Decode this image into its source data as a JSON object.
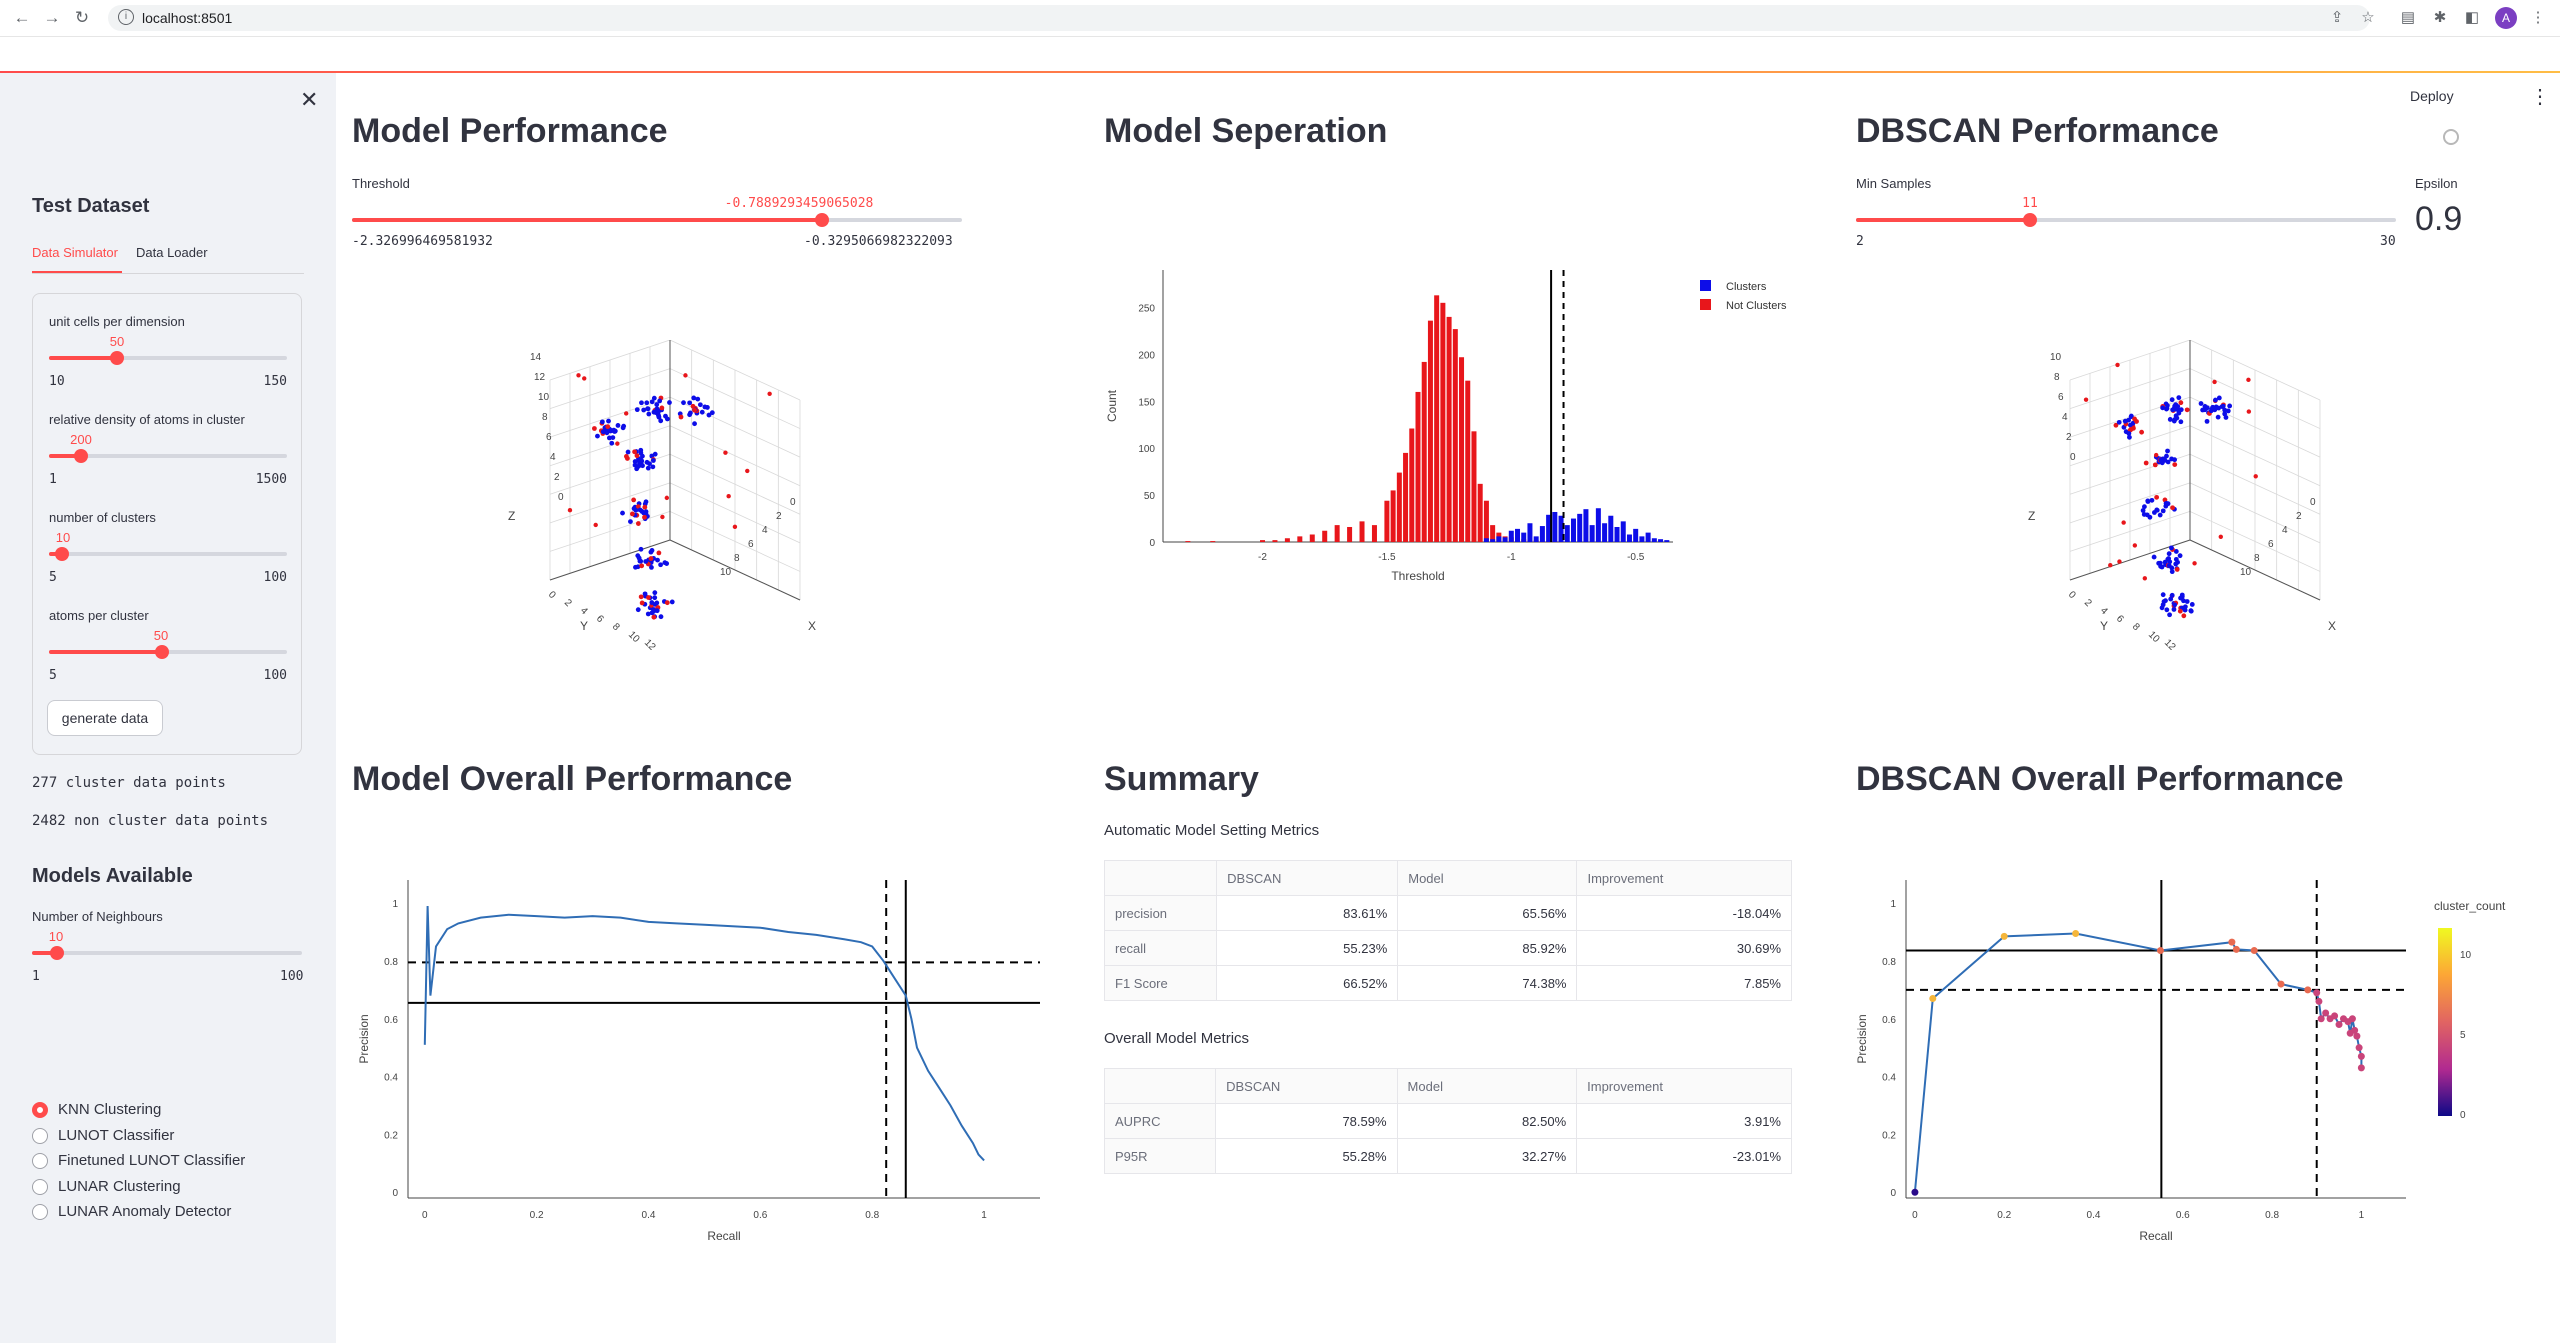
{
  "browser": {
    "url": "localhost:8501",
    "profile_initial": "A"
  },
  "header": {
    "deploy": "Deploy",
    "menu_icon": "kebab-icon"
  },
  "sidebar": {
    "title": "Test Dataset",
    "tabs": [
      "Data Simulator",
      "Data Loader"
    ],
    "sliders": [
      {
        "label": "unit cells per dimension",
        "value": "50",
        "min": "10",
        "max": "150",
        "fraction": 0.2857
      },
      {
        "label": "relative density of atoms in cluster",
        "value": "200",
        "min": "1",
        "max": "1500",
        "fraction": 0.1328
      },
      {
        "label": "number of clusters",
        "value": "10",
        "min": "5",
        "max": "100",
        "fraction": 0.0526
      },
      {
        "label": "atoms per cluster",
        "value": "50",
        "min": "5",
        "max": "100",
        "fraction": 0.4737
      }
    ],
    "generate_button": "generate data",
    "cluster_points": "277 cluster data points",
    "non_cluster_points": "2482 non cluster data points",
    "models_title": "Models Available",
    "neighbours": {
      "label": "Number of Neighbours",
      "value": "10",
      "min": "1",
      "max": "100",
      "fraction": 0.0909
    },
    "models": [
      "KNN Clustering",
      "LUNOT Classifier",
      "Finetuned LUNOT Classifier",
      "LUNAR Clustering",
      "LUNAR Anomaly Detector"
    ],
    "selected_model": 0
  },
  "model_performance": {
    "title": "Model Performance",
    "threshold_label": "Threshold",
    "threshold_value": "-0.7889293459065028",
    "threshold_min": "-2.326996469581932",
    "threshold_max": "-0.3295066982322093",
    "threshold_fraction": 0.77
  },
  "model_separation": {
    "title": "Model Seperation"
  },
  "dbscan_performance": {
    "title": "DBSCAN Performance",
    "min_samples_label": "Min Samples",
    "min_samples_value": "11",
    "min_samples_min": "2",
    "min_samples_max": "30",
    "min_samples_fraction": 0.3214,
    "epsilon_label": "Epsilon",
    "epsilon_value": "0.9"
  },
  "scatter3d_left": {
    "z_label": "Z",
    "y_label": "Y",
    "x_label": "X",
    "z_ticks": [
      "14",
      "12",
      "10",
      "8",
      "6",
      "4",
      "2",
      "0"
    ],
    "y_ticks": [
      "0",
      "2",
      "4",
      "6",
      "8",
      "10",
      "12"
    ],
    "x_ticks": [
      "0",
      "2",
      "4",
      "6",
      "8",
      "10"
    ]
  },
  "scatter3d_right": {
    "z_label": "Z",
    "y_label": "Y",
    "x_label": "X",
    "z_ticks": [
      "10",
      "8",
      "6",
      "4",
      "2",
      "0"
    ],
    "y_ticks": [
      "0",
      "2",
      "4",
      "6",
      "8",
      "10",
      "12"
    ],
    "x_ticks": [
      "0",
      "2",
      "4",
      "6",
      "8",
      "10"
    ]
  },
  "colors": {
    "accent": "#ff4b4b",
    "cluster": "#0d0de8",
    "not_cluster": "#e8161b",
    "line": "#2f6db5"
  },
  "model_overall": {
    "title": "Model Overall Performance"
  },
  "summary": {
    "title": "Summary",
    "auto_title": "Automatic Model Setting Metrics",
    "auto_columns": [
      "",
      "DBSCAN",
      "Model",
      "Improvement"
    ],
    "auto_rows": [
      [
        "precision",
        "83.61%",
        "65.56%",
        "-18.04%"
      ],
      [
        "recall",
        "55.23%",
        "85.92%",
        "30.69%"
      ],
      [
        "F1 Score",
        "66.52%",
        "74.38%",
        "7.85%"
      ]
    ],
    "overall_title": "Overall Model Metrics",
    "overall_columns": [
      "",
      "DBSCAN",
      "Model",
      "Improvement"
    ],
    "overall_rows": [
      [
        "AUPRC",
        "78.59%",
        "82.50%",
        "3.91%"
      ],
      [
        "P95R",
        "55.28%",
        "32.27%",
        "-23.01%"
      ]
    ]
  },
  "dbscan_overall": {
    "title": "DBSCAN Overall Performance"
  },
  "chart_data": [
    {
      "type": "bar",
      "xlabel": "Threshold",
      "ylabel": "Count",
      "xlim": [
        -2.4,
        -0.35
      ],
      "ylim": [
        0,
        290
      ],
      "xticks": [
        "-2",
        "-1.5",
        "-1",
        "-0.5"
      ],
      "yticks": [
        "0",
        "50",
        "100",
        "150",
        "200",
        "250"
      ],
      "legend": [
        "Clusters",
        "Not Clusters"
      ],
      "legend_position": "top-right",
      "vlines": [
        -0.84,
        -0.79
      ],
      "series": [
        {
          "name": "Not Clusters",
          "x": [
            -2.3,
            -2.2,
            -2.0,
            -1.95,
            -1.9,
            -1.85,
            -1.8,
            -1.75,
            -1.7,
            -1.65,
            -1.6,
            -1.55,
            -1.5,
            -1.475,
            -1.45,
            -1.425,
            -1.4,
            -1.375,
            -1.35,
            -1.325,
            -1.3,
            -1.275,
            -1.25,
            -1.225,
            -1.2,
            -1.175,
            -1.15,
            -1.125,
            -1.1,
            -1.075,
            -1.05,
            -1.025,
            -1.0,
            -0.975,
            -0.95,
            -0.925,
            -0.9,
            -0.875,
            -0.85,
            -0.825,
            -0.8
          ],
          "values": [
            1,
            1,
            2,
            2,
            4,
            6,
            8,
            12,
            18,
            16,
            22,
            18,
            44,
            55,
            74,
            95,
            121,
            160,
            192,
            236,
            263,
            255,
            240,
            227,
            197,
            172,
            118,
            62,
            44,
            18,
            10,
            6,
            5,
            4,
            3,
            2,
            2,
            1,
            1,
            1,
            1
          ]
        },
        {
          "name": "Clusters",
          "x": [
            -1.1,
            -1.075,
            -1.05,
            -1.025,
            -1.0,
            -0.975,
            -0.95,
            -0.925,
            -0.9,
            -0.875,
            -0.85,
            -0.825,
            -0.8,
            -0.775,
            -0.75,
            -0.725,
            -0.7,
            -0.675,
            -0.65,
            -0.625,
            -0.6,
            -0.575,
            -0.55,
            -0.525,
            -0.5,
            -0.475,
            -0.45,
            -0.425,
            -0.4,
            -0.375
          ],
          "values": [
            4,
            3,
            6,
            5,
            12,
            14,
            10,
            20,
            6,
            17,
            29,
            32,
            28,
            18,
            25,
            30,
            35,
            18,
            36,
            20,
            28,
            16,
            22,
            8,
            14,
            6,
            10,
            4,
            3,
            2
          ]
        }
      ]
    },
    {
      "type": "line",
      "xlabel": "Recall",
      "ylabel": "Precision",
      "xlim": [
        -0.03,
        1.1
      ],
      "ylim": [
        -0.02,
        1.08
      ],
      "xticks": [
        "0",
        "0.2",
        "0.4",
        "0.6",
        "0.8",
        "1"
      ],
      "yticks": [
        "0",
        "0.2",
        "0.4",
        "0.6",
        "0.8",
        "1"
      ],
      "hlines_dashed": [
        0.795
      ],
      "hlines_solid": [
        0.655
      ],
      "vlines_dashed": [
        0.825
      ],
      "vlines_solid": [
        0.86
      ],
      "x": [
        0.0,
        0.005,
        0.01,
        0.02,
        0.04,
        0.06,
        0.1,
        0.15,
        0.2,
        0.25,
        0.3,
        0.35,
        0.4,
        0.45,
        0.5,
        0.55,
        0.6,
        0.65,
        0.7,
        0.75,
        0.78,
        0.8,
        0.82,
        0.84,
        0.86,
        0.87,
        0.88,
        0.9,
        0.92,
        0.94,
        0.96,
        0.98,
        0.99,
        1.0
      ],
      "y": [
        0.51,
        0.99,
        0.68,
        0.85,
        0.91,
        0.93,
        0.95,
        0.96,
        0.955,
        0.95,
        0.955,
        0.95,
        0.935,
        0.93,
        0.925,
        0.92,
        0.915,
        0.9,
        0.89,
        0.875,
        0.865,
        0.85,
        0.8,
        0.74,
        0.68,
        0.6,
        0.5,
        0.42,
        0.36,
        0.3,
        0.23,
        0.17,
        0.13,
        0.11
      ]
    },
    {
      "type": "line",
      "xlabel": "Recall",
      "ylabel": "Precision",
      "xlim": [
        -0.02,
        1.1
      ],
      "ylim": [
        -0.02,
        1.08
      ],
      "xticks": [
        "0",
        "0.2",
        "0.4",
        "0.6",
        "0.8",
        "1"
      ],
      "yticks": [
        "0",
        "0.2",
        "0.4",
        "0.6",
        "0.8",
        "1"
      ],
      "colorbar_title": "cluster_count",
      "colorbar_ticks": [
        "10",
        "5",
        "0"
      ],
      "hlines_solid": [
        0.836
      ],
      "hlines_dashed": [
        0.7
      ],
      "vlines_solid": [
        0.552
      ],
      "vlines_dashed": [
        0.9
      ],
      "x": [
        0.0,
        0.04,
        0.2,
        0.36,
        0.55,
        0.71,
        0.72,
        0.76,
        0.82,
        0.88,
        0.9,
        0.905,
        0.91,
        0.92,
        0.93,
        0.94,
        0.95,
        0.96,
        0.97,
        0.975,
        0.98,
        0.985,
        0.99,
        0.995,
        1.0,
        1.0
      ],
      "y": [
        0.0,
        0.67,
        0.885,
        0.895,
        0.836,
        0.865,
        0.84,
        0.836,
        0.72,
        0.7,
        0.69,
        0.66,
        0.6,
        0.62,
        0.6,
        0.61,
        0.58,
        0.6,
        0.59,
        0.55,
        0.6,
        0.56,
        0.54,
        0.5,
        0.47,
        0.43
      ]
    }
  ]
}
